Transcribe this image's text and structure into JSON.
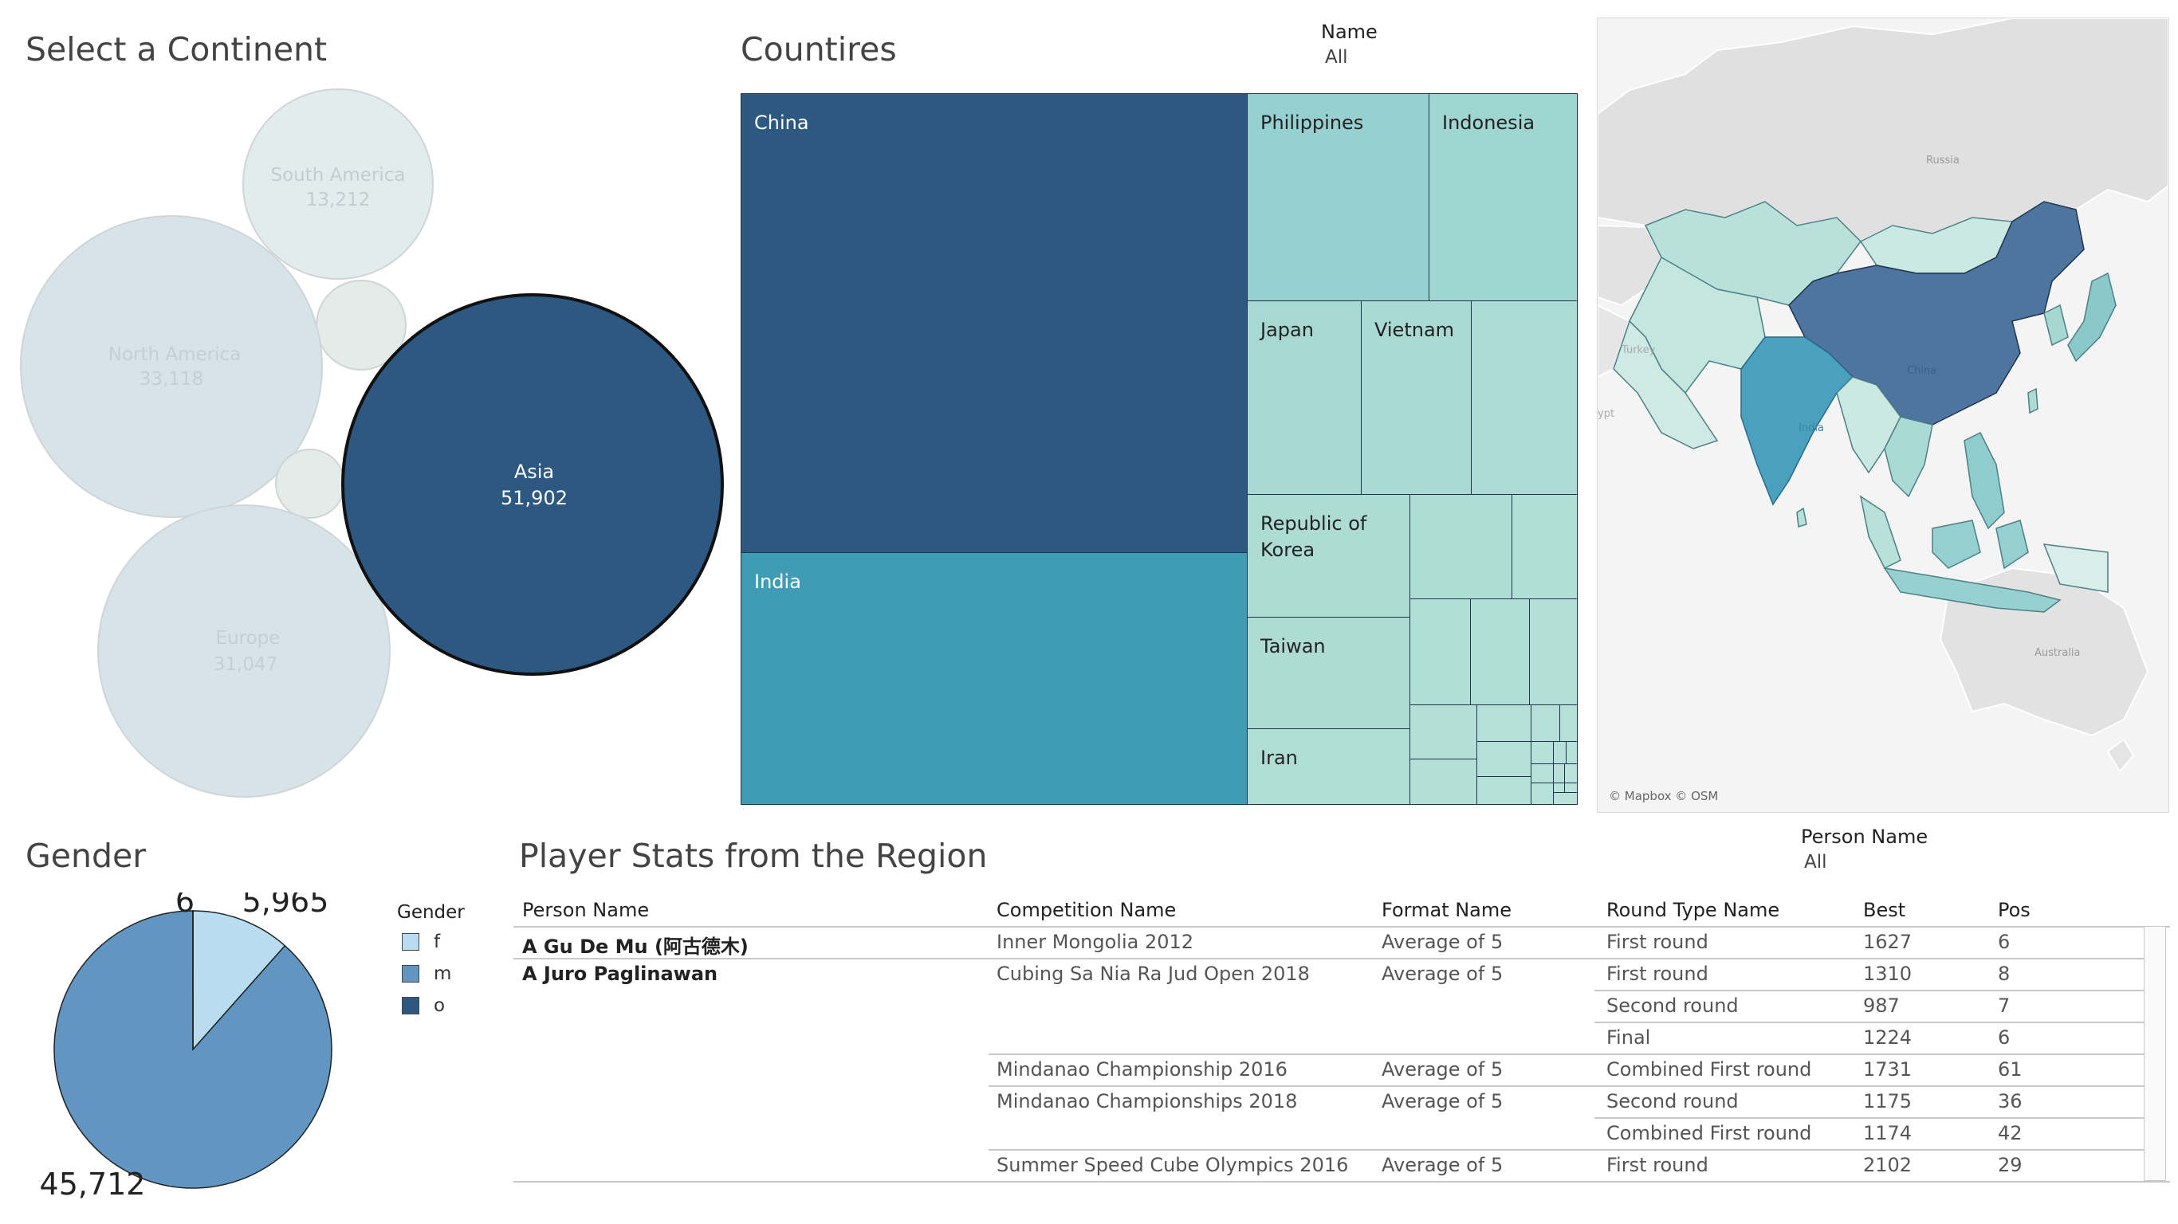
{
  "continents": {
    "title": "Select a Continent",
    "bubbles": [
      {
        "name": "South America",
        "value": "13,212",
        "selected": false
      },
      {
        "name": "North America",
        "value": "33,118",
        "selected": false
      },
      {
        "name": "Asia",
        "value": "51,902",
        "selected": true
      },
      {
        "name": "Europe",
        "value": "31,047",
        "selected": false
      },
      {
        "name": "",
        "value": "",
        "selected": false
      },
      {
        "name": "",
        "value": "",
        "selected": false
      }
    ]
  },
  "countries": {
    "title": "Countires",
    "name_filter": {
      "label": "Name",
      "value": "All"
    },
    "cells": [
      "China",
      "India",
      "Philippines",
      "Indonesia",
      "Japan",
      "Vietnam",
      "Republic of Korea",
      "Taiwan",
      "Iran"
    ]
  },
  "map": {
    "attribution": "© Mapbox © OSM",
    "labels": [
      "Russia",
      "China",
      "India",
      "Australia",
      "Turkey",
      "ypt"
    ]
  },
  "gender": {
    "title": "Gender",
    "legend_title": "Gender",
    "legend": [
      {
        "label": "f",
        "color": "#b9ddf0"
      },
      {
        "label": "m",
        "color": "#6196c2"
      },
      {
        "label": "o",
        "color": "#2d5882"
      }
    ],
    "chart_data": {
      "type": "pie",
      "categories": [
        "f",
        "m",
        "o"
      ],
      "values": [
        5965,
        45712,
        6
      ],
      "labels": [
        "5,965",
        "45,712",
        "6"
      ]
    }
  },
  "stats": {
    "title": "Player Stats from the Region",
    "person_filter": {
      "label": "Person Name",
      "value": "All"
    },
    "headers": [
      "Person Name",
      "Competition Name",
      "Format Name",
      "Round Type Name",
      "Best",
      "Pos"
    ],
    "rows": [
      {
        "person": "A Gu De Mu (阿古德木)",
        "competition": "Inner Mongolia 2012",
        "format": "Average of 5",
        "round": "First round",
        "best": "1627",
        "pos": "6"
      },
      {
        "person": "A Juro Paglinawan",
        "competition": "Cubing Sa Nia Ra Jud Open 2018",
        "format": "Average of 5",
        "round": "First round",
        "best": "1310",
        "pos": "8"
      },
      {
        "person": "",
        "competition": "",
        "format": "",
        "round": "Second round",
        "best": "987",
        "pos": "7"
      },
      {
        "person": "",
        "competition": "",
        "format": "",
        "round": "Final",
        "best": "1224",
        "pos": "6"
      },
      {
        "person": "",
        "competition": "Mindanao Championship 2016",
        "format": "Average of 5",
        "round": "Combined First round",
        "best": "1731",
        "pos": "61"
      },
      {
        "person": "",
        "competition": "Mindanao Championships 2018",
        "format": "Average of 5",
        "round": "Second round",
        "best": "1175",
        "pos": "36"
      },
      {
        "person": "",
        "competition": "",
        "format": "",
        "round": "Combined First round",
        "best": "1174",
        "pos": "42"
      },
      {
        "person": "",
        "competition": "Summer Speed Cube Olympics 2016",
        "format": "Average of 5",
        "round": "First round",
        "best": "2102",
        "pos": "29"
      }
    ]
  }
}
